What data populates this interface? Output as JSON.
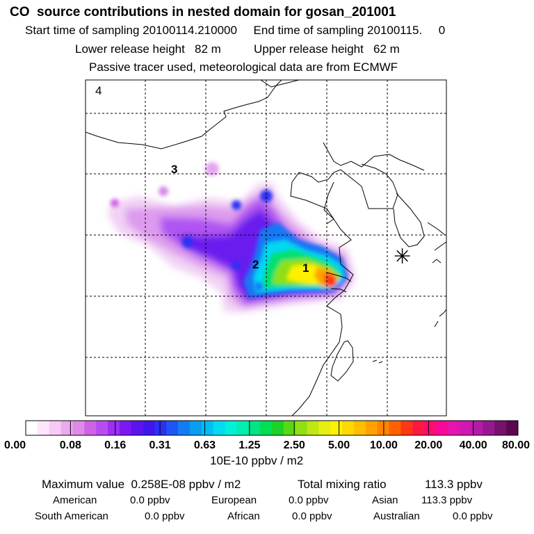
{
  "header": {
    "title": "CO  source contributions in nested domain for gosan_201001",
    "line2": "Start time of sampling 20100114.210000     End time of sampling 20100115.     0",
    "line3": "Lower release height   82 m          Upper release height   62 m",
    "line4": "Passive tracer used, meteorological data are from ECMWF"
  },
  "map": {
    "panel_label": "4",
    "region_labels": [
      "1",
      "2",
      "3"
    ],
    "receptor_symbol": "✳"
  },
  "colorbar": {
    "tick_labels": [
      "0.00",
      "0.08",
      "0.16",
      "0.31",
      "0.63",
      "1.25",
      "2.50",
      "5.00",
      "10.00",
      "20.00",
      "40.00",
      "80.00"
    ],
    "unit": "10E-10 ppbv / m2",
    "colors": [
      "#ffffff",
      "#fbe6fb",
      "#f5cbf5",
      "#ecaaf0",
      "#e08ae8",
      "#cf62e6",
      "#b94cf0",
      "#9d2ef5",
      "#7d18f2",
      "#5b14ee",
      "#4016ee",
      "#2b30f4",
      "#1e56f5",
      "#137cf2",
      "#0a9ef3",
      "#00bdf5",
      "#00dcf0",
      "#00f0d8",
      "#00eeb0",
      "#00e486",
      "#00de52",
      "#1ad228",
      "#58d814",
      "#8ee012",
      "#bfe812",
      "#e5ee10",
      "#fff000",
      "#ffd800",
      "#ffbe00",
      "#ffa200",
      "#ff8200",
      "#ff6000",
      "#ff3814",
      "#ff1840",
      "#ff0c70",
      "#f60a96",
      "#e614ae",
      "#d018b6",
      "#b41aa8",
      "#96188e",
      "#78106e",
      "#5c0850"
    ]
  },
  "stats": {
    "max_label": "Maximum value  0.258E-08 ppbv / m2",
    "total_label": "Total mixing ratio",
    "total_value": "113.3 ppbv",
    "american_label": "American",
    "american_value": "0.0 ppbv",
    "european_label": "European",
    "european_value": "0.0 ppbv",
    "asian_label": "Asian",
    "asian_value": "113.3 ppbv",
    "south_american_label": "South American",
    "south_american_value": "0.0 ppbv",
    "african_label": "African",
    "african_value": "0.0 ppbv",
    "australian_label": "Australian",
    "australian_value": "0.0 ppbv"
  }
}
